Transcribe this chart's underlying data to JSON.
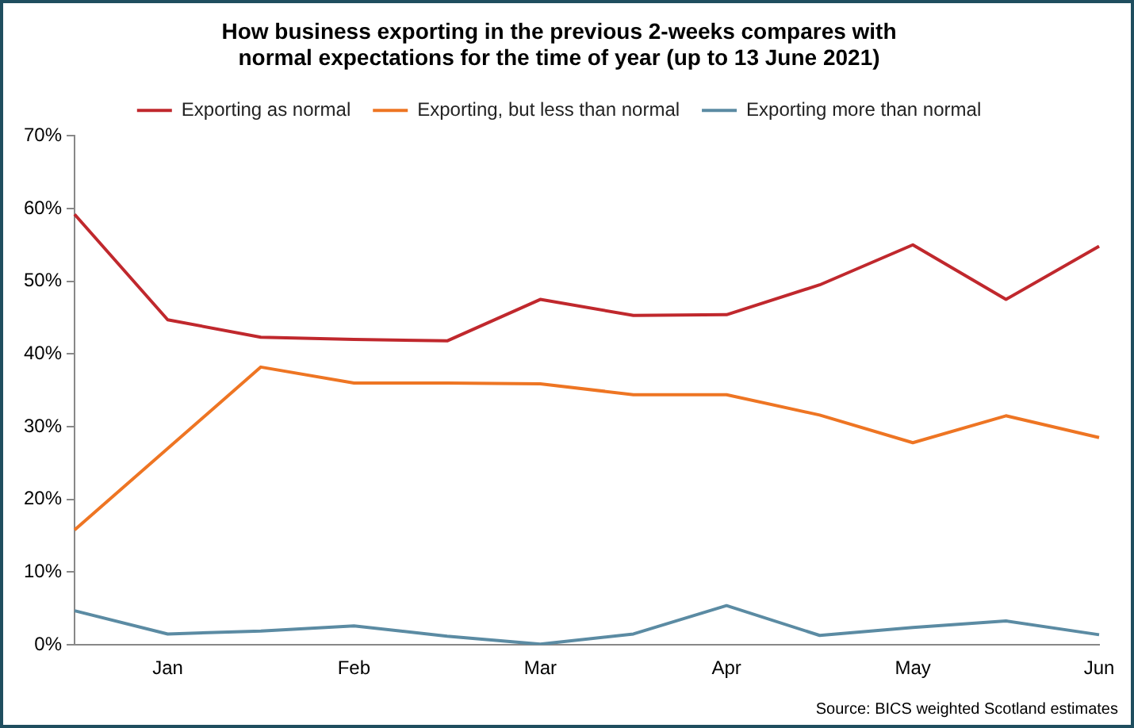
{
  "chart_data": {
    "type": "line",
    "title": "How business exporting in the previous 2-weeks compares with normal expectations for the time of year (up to 13 June 2021)",
    "categories": [
      null,
      "Jan",
      null,
      "Feb",
      null,
      "Mar",
      null,
      "Apr",
      null,
      "May",
      null,
      "Jun"
    ],
    "series": [
      {
        "name": "Exporting as normal",
        "color": "#c0282d",
        "values": [
          59.2,
          44.7,
          42.3,
          42.0,
          41.8,
          47.5,
          45.3,
          45.4,
          49.5,
          55.0,
          47.5,
          54.8
        ]
      },
      {
        "name": "Exporting, but less than normal",
        "color": "#ee7523",
        "values": [
          15.8,
          27.0,
          38.2,
          36.0,
          36.0,
          35.9,
          34.4,
          34.4,
          31.6,
          27.8,
          31.5,
          28.5
        ]
      },
      {
        "name": "Exporting more than normal",
        "color": "#5b8ba3",
        "values": [
          4.7,
          1.5,
          1.9,
          2.6,
          1.2,
          0.1,
          1.5,
          5.4,
          1.3,
          2.4,
          3.3,
          1.4
        ]
      }
    ],
    "ylim": [
      0,
      70
    ],
    "yticks": [
      {
        "value": 0,
        "label": "0%"
      },
      {
        "value": 10,
        "label": "10%"
      },
      {
        "value": 20,
        "label": "20%"
      },
      {
        "value": 30,
        "label": "30%"
      },
      {
        "value": 40,
        "label": "40%"
      },
      {
        "value": 50,
        "label": "50%"
      },
      {
        "value": 60,
        "label": "60%"
      },
      {
        "value": 70,
        "label": "70%"
      }
    ],
    "grid": false,
    "legend": "top",
    "marker": "none",
    "line_style": "solid",
    "annotations": [
      "Source: BICS weighted Scotland estimates"
    ]
  }
}
